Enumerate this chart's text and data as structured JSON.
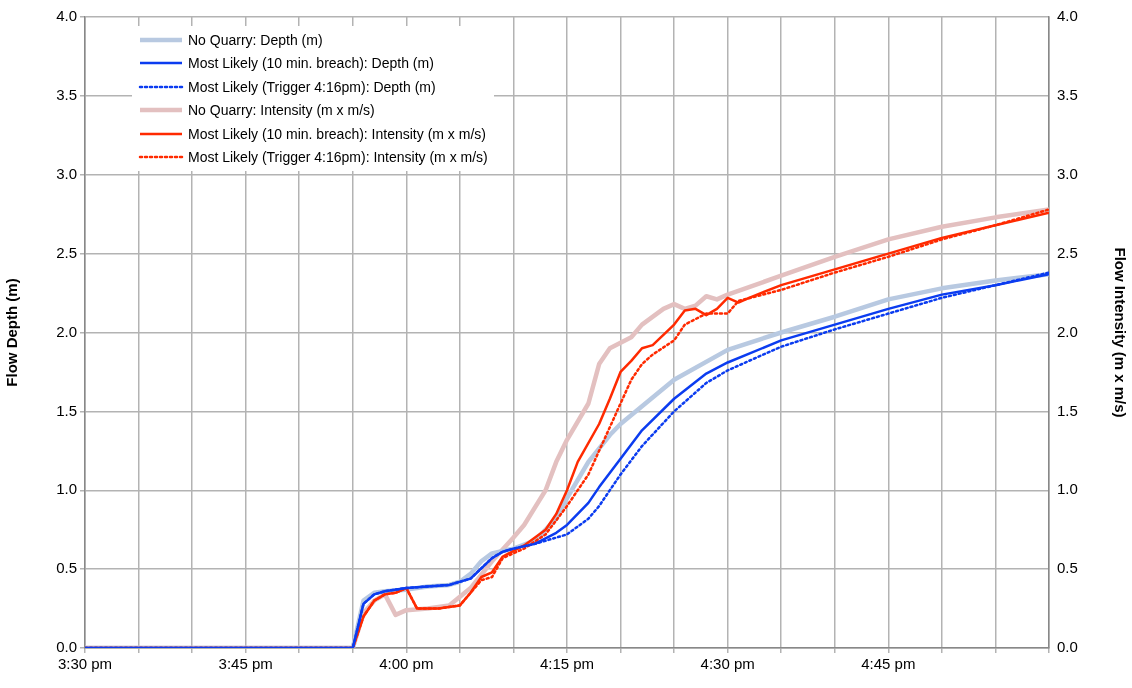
{
  "chart_data": {
    "type": "line",
    "ylabel": "Flow Depth (m)",
    "y2label": "Flow Intensity (m x m/s)",
    "xlim": [
      15.5,
      17
    ],
    "ylim": [
      0,
      4
    ],
    "y2lim": [
      0,
      4
    ],
    "xticks": [
      {
        "value": 15.5,
        "label": "3:30 pm"
      },
      {
        "value": 15.5833,
        "label": null
      },
      {
        "value": 15.6667,
        "label": null
      },
      {
        "value": 15.75,
        "label": "3:45 pm"
      },
      {
        "value": 15.8333,
        "label": null
      },
      {
        "value": 15.9167,
        "label": null
      },
      {
        "value": 16,
        "label": "4:00 pm"
      },
      {
        "value": 16.0833,
        "label": null
      },
      {
        "value": 16.1667,
        "label": null
      },
      {
        "value": 16.25,
        "label": "4:15 pm"
      },
      {
        "value": 16.3333,
        "label": null
      },
      {
        "value": 16.4167,
        "label": null
      },
      {
        "value": 16.5,
        "label": "4:30 pm"
      },
      {
        "value": 16.5833,
        "label": null
      },
      {
        "value": 16.6667,
        "label": null
      },
      {
        "value": 16.75,
        "label": "4:45 pm"
      },
      {
        "value": 16.8333,
        "label": null
      },
      {
        "value": 16.9167,
        "label": null
      },
      {
        "value": 17,
        "label": null
      }
    ],
    "yticks": [
      {
        "value": 0,
        "label": "0.0"
      },
      {
        "value": 0.5,
        "label": "0.5"
      },
      {
        "value": 1,
        "label": "1.0"
      },
      {
        "value": 1.5,
        "label": "1.5"
      },
      {
        "value": 2,
        "label": "2.0"
      },
      {
        "value": 2.5,
        "label": "2.5"
      },
      {
        "value": 3,
        "label": "3.0"
      },
      {
        "value": 3.5,
        "label": "3.5"
      },
      {
        "value": 4,
        "label": "4.0"
      }
    ],
    "y2ticks": [
      {
        "value": 0,
        "label": "0.0"
      },
      {
        "value": 0.5,
        "label": "0.5"
      },
      {
        "value": 1,
        "label": "1.0"
      },
      {
        "value": 1.5,
        "label": "1.5"
      },
      {
        "value": 2,
        "label": "2.0"
      },
      {
        "value": 2.5,
        "label": "2.5"
      },
      {
        "value": 3,
        "label": "3.0"
      },
      {
        "value": 3.5,
        "label": "3.5"
      },
      {
        "value": 4,
        "label": "4.0"
      }
    ],
    "grid": true,
    "legend": "top left",
    "marker": "none",
    "series": [
      {
        "name": "No Quarry: Depth (m)",
        "color": "#b8c9e1",
        "line_style": "solid",
        "x": [
          15.5,
          15.9167,
          15.9333,
          15.95,
          15.9667,
          16,
          16.0333,
          16.0667,
          16.0833,
          16.1,
          16.1167,
          16.1333,
          16.1667,
          16.2,
          16.2333,
          16.25,
          16.2833,
          16.3167,
          16.3333,
          16.4167,
          16.5,
          16.5833,
          16.6667,
          16.75,
          16.8333,
          16.9167,
          17
        ],
        "values": [
          0,
          0,
          0.3,
          0.35,
          0.36,
          0.37,
          0.39,
          0.4,
          0.42,
          0.47,
          0.55,
          0.6,
          0.63,
          0.68,
          0.82,
          0.95,
          1.18,
          1.35,
          1.42,
          1.7,
          1.89,
          2.0,
          2.1,
          2.21,
          2.28,
          2.33,
          2.37
        ]
      },
      {
        "name": "Most Likely (10 min. breach): Depth (m)",
        "color": "#0b3cf0",
        "line_style": "solid",
        "x": [
          15.5,
          15.9167,
          15.9333,
          15.95,
          15.9667,
          16,
          16.0667,
          16.1,
          16.1333,
          16.15,
          16.1667,
          16.2,
          16.2333,
          16.25,
          16.2833,
          16.3,
          16.3333,
          16.3667,
          16.4167,
          16.4667,
          16.5,
          16.5833,
          16.6667,
          16.75,
          16.8333,
          16.9167,
          17
        ],
        "values": [
          0,
          0,
          0.28,
          0.34,
          0.36,
          0.38,
          0.4,
          0.44,
          0.57,
          0.61,
          0.63,
          0.66,
          0.73,
          0.78,
          0.92,
          1.02,
          1.2,
          1.38,
          1.58,
          1.74,
          1.81,
          1.95,
          2.05,
          2.15,
          2.24,
          2.3,
          2.37
        ]
      },
      {
        "name": "Most Likely (Trigger 4:16pm): Depth (m)",
        "color": "#0b3cf0",
        "line_style": "dotted",
        "x": [
          15.5,
          15.9167,
          15.9333,
          15.95,
          15.9667,
          16,
          16.0667,
          16.1,
          16.1333,
          16.15,
          16.1667,
          16.2,
          16.25,
          16.2833,
          16.3,
          16.3333,
          16.3667,
          16.4167,
          16.4667,
          16.5,
          16.5833,
          16.6667,
          16.75,
          16.8333,
          16.9167,
          17
        ],
        "values": [
          0,
          0,
          0.28,
          0.34,
          0.36,
          0.38,
          0.4,
          0.44,
          0.57,
          0.61,
          0.63,
          0.66,
          0.72,
          0.82,
          0.9,
          1.1,
          1.28,
          1.5,
          1.68,
          1.76,
          1.91,
          2.02,
          2.12,
          2.22,
          2.3,
          2.38
        ]
      },
      {
        "name": "No Quarry: Intensity (m x m/s)",
        "color": "#e3c0c0",
        "line_style": "solid",
        "axis": "y2",
        "x": [
          15.5,
          15.9167,
          15.9333,
          15.95,
          15.9667,
          15.9833,
          16,
          16.0333,
          16.0667,
          16.1,
          16.1333,
          16.1667,
          16.1833,
          16.2167,
          16.2333,
          16.25,
          16.2833,
          16.3,
          16.3167,
          16.35,
          16.3667,
          16.4,
          16.4167,
          16.4333,
          16.45,
          16.4667,
          16.4833,
          16.5,
          16.5833,
          16.6667,
          16.75,
          16.8333,
          16.9167,
          17
        ],
        "values": [
          0,
          0,
          0.22,
          0.3,
          0.34,
          0.21,
          0.24,
          0.25,
          0.27,
          0.38,
          0.55,
          0.7,
          0.78,
          1.0,
          1.18,
          1.32,
          1.55,
          1.8,
          1.9,
          1.97,
          2.05,
          2.15,
          2.18,
          2.15,
          2.17,
          2.23,
          2.21,
          2.24,
          2.36,
          2.48,
          2.59,
          2.67,
          2.73,
          2.78
        ]
      },
      {
        "name": "Most Likely (10 min. breach): Intensity (m x m/s)",
        "color": "#ff2a00",
        "line_style": "solid",
        "axis": "y2",
        "x": [
          15.5,
          15.9167,
          15.9333,
          15.95,
          15.9667,
          15.9833,
          16,
          16.0167,
          16.05,
          16.0833,
          16.1,
          16.1167,
          16.1333,
          16.15,
          16.1833,
          16.2167,
          16.2333,
          16.25,
          16.2667,
          16.3,
          16.3167,
          16.3333,
          16.35,
          16.3667,
          16.3833,
          16.4167,
          16.4333,
          16.45,
          16.4667,
          16.4833,
          16.5,
          16.5167,
          16.5333,
          16.5833,
          16.6667,
          16.75,
          16.8333,
          16.9167,
          17
        ],
        "values": [
          0,
          0,
          0.2,
          0.3,
          0.34,
          0.35,
          0.38,
          0.25,
          0.25,
          0.27,
          0.35,
          0.45,
          0.48,
          0.58,
          0.65,
          0.75,
          0.85,
          1.0,
          1.18,
          1.42,
          1.58,
          1.75,
          1.82,
          1.9,
          1.92,
          2.05,
          2.14,
          2.15,
          2.11,
          2.15,
          2.22,
          2.19,
          2.22,
          2.3,
          2.4,
          2.5,
          2.6,
          2.68,
          2.76
        ]
      },
      {
        "name": "Most Likely (Trigger 4:16pm): Intensity (m x m/s)",
        "color": "#ff2a00",
        "line_style": "dotted",
        "axis": "y2",
        "x": [
          15.5,
          15.9167,
          15.9333,
          15.95,
          15.9667,
          15.9833,
          16,
          16.0167,
          16.05,
          16.0833,
          16.1,
          16.1167,
          16.1333,
          16.15,
          16.1833,
          16.2167,
          16.25,
          16.2833,
          16.3167,
          16.3333,
          16.35,
          16.3667,
          16.3833,
          16.4167,
          16.4333,
          16.4667,
          16.5,
          16.5167,
          16.5833,
          16.6667,
          16.75,
          16.8333,
          16.9167,
          17
        ],
        "values": [
          0,
          0,
          0.2,
          0.3,
          0.34,
          0.35,
          0.38,
          0.25,
          0.25,
          0.27,
          0.35,
          0.43,
          0.45,
          0.57,
          0.63,
          0.72,
          0.9,
          1.1,
          1.4,
          1.55,
          1.7,
          1.8,
          1.86,
          1.95,
          2.05,
          2.12,
          2.12,
          2.2,
          2.27,
          2.38,
          2.48,
          2.59,
          2.68,
          2.78
        ]
      }
    ]
  }
}
